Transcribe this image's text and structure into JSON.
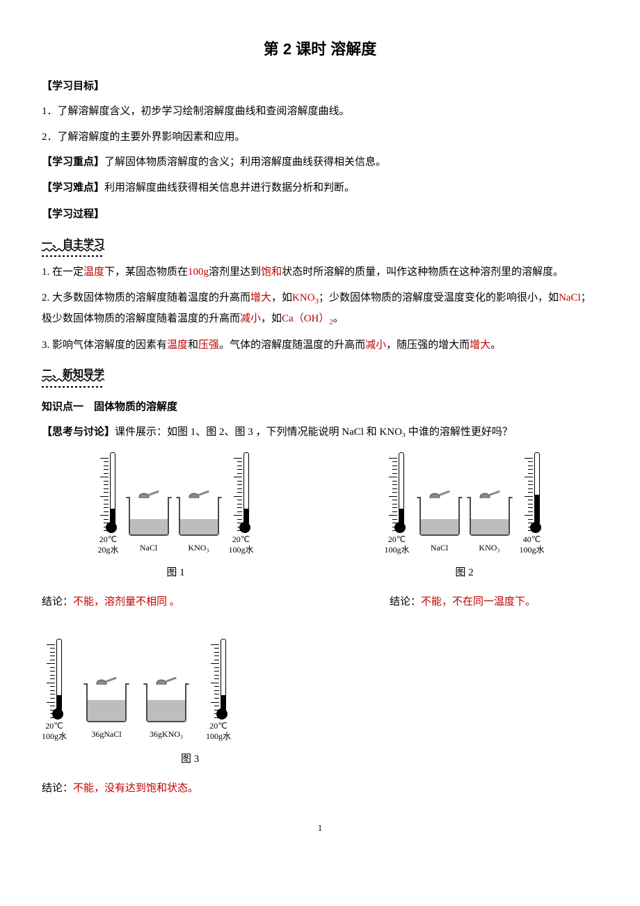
{
  "title": "第 2 课时  溶解度",
  "sections": {
    "goals_head": "【学习目标】",
    "goal1": "1．了解溶解度含义，初步学习绘制溶解度曲线和查阅溶解度曲线。",
    "goal2": "2．了解溶解度的主要外界影响因素和应用。",
    "focus_head": "【学习重点】",
    "focus_text": "了解固体物质溶解度的含义；利用溶解度曲线获得相关信息。",
    "diff_head": "【学习难点】",
    "diff_text": "利用溶解度曲线获得相关信息并进行数据分析和判断。",
    "process_head": "【学习过程】",
    "self_head": "一、自主学习",
    "p1_a": "1. 在一定",
    "p1_r1": "温度",
    "p1_b": "下，某固态物质在",
    "p1_r2": "100g",
    "p1_c": "溶剂里达到",
    "p1_r3": "饱和",
    "p1_d": "状态时所溶解的质量，叫作这种物质在这种溶剂里的溶解度。",
    "p2_a": "2. 大多数固体物质的溶解度随着温度的升高而",
    "p2_r1": "增大",
    "p2_b": "，如",
    "p2_r2": "KNO",
    "p2_b2": "；少数固体物质的溶解度受温度变化的影响很小，如",
    "p2_r3": "NaCl",
    "p2_c": "；极少数固体物质的溶解度随着温度的升高而",
    "p2_r4": "减小",
    "p2_d": "，如",
    "p2_r5": "Ca（OH）",
    "p2_e": "。",
    "p3_a": "3. 影响气体溶解度的因素有",
    "p3_r1": "温度",
    "p3_b": "和",
    "p3_r2": "压强",
    "p3_c": "。气体的溶解度随温度的升高而",
    "p3_r3": "减小",
    "p3_d": "，随压强的增大而",
    "p3_r4": "增大",
    "p3_e": "。",
    "new_head": "二、新知导学",
    "kp_head": "知识点一　固体物质的溶解度",
    "think_head": "【思考与讨论】",
    "think_text": "课件展示：如图 1、图 2、图 3 ，下列情况能说明 NaCl 和 KNO₃ 中谁的溶解性更好吗？"
  },
  "fig1": {
    "therm1": {
      "temp": "20℃",
      "water": "20g水",
      "fill_pct": 20
    },
    "beaker1": {
      "label": "NaCl"
    },
    "beaker2": {
      "label": "KNO₃"
    },
    "therm2": {
      "temp": "20℃",
      "water": "100g水",
      "fill_pct": 20
    },
    "caption": "图 1",
    "concl_a": "结论：",
    "concl_r": "不能，溶剂量不相同 。"
  },
  "fig2": {
    "therm1": {
      "temp": "20℃",
      "water": "100g水",
      "fill_pct": 20
    },
    "beaker1": {
      "label": "NaCl"
    },
    "beaker2": {
      "label": "KNO₃"
    },
    "therm2": {
      "temp": "40℃",
      "water": "100g水",
      "fill_pct": 40
    },
    "caption": "图 2",
    "concl_a": "结论：",
    "concl_r": "不能，不在同一温度下。"
  },
  "fig3": {
    "therm1": {
      "temp": "20℃",
      "water": "100g水",
      "fill_pct": 20
    },
    "beaker1": {
      "label": "36gNaCl"
    },
    "beaker2": {
      "label": "36gKNO₃"
    },
    "therm2": {
      "temp": "20℃",
      "water": "100g水",
      "fill_pct": 20
    },
    "caption": "图 3",
    "concl_a": "结论：",
    "concl_r": "不能，没有达到饱和状态。"
  },
  "page_num": "1",
  "colors": {
    "red": "#c00000",
    "black": "#000000",
    "liquid": "#bdbdbd",
    "beaker_border": "#4a4a4a"
  }
}
